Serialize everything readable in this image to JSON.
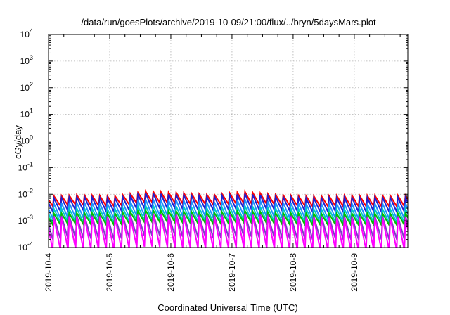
{
  "chart_data": {
    "type": "line",
    "title": "/data/run/goesPlots/archive/2019-10-09/21:00/flux/../bryn/5daysMars.plot",
    "xlabel": "Coordinated Universal Time (UTC)",
    "ylabel": "cGy/day",
    "x_scale": "time",
    "xlim": [
      "2019-10-04T00:00",
      "2019-10-09T21:00"
    ],
    "x_ticks": [
      "2019-10-4",
      "2019-10-5",
      "2019-10-6",
      "2019-10-7",
      "2019-10-8",
      "2019-10-9"
    ],
    "y_scale": "log",
    "ylim": [
      0.0001,
      10000
    ],
    "y_ticks": [
      {
        "base": "10",
        "exp": "-4"
      },
      {
        "base": "10",
        "exp": "-3"
      },
      {
        "base": "10",
        "exp": "-2"
      },
      {
        "base": "10",
        "exp": "-1"
      },
      {
        "base": "10",
        "exp": "0"
      },
      {
        "base": "10",
        "exp": "1"
      },
      {
        "base": "10",
        "exp": "2"
      },
      {
        "base": "10",
        "exp": "3"
      },
      {
        "base": "10",
        "exp": "4"
      }
    ],
    "grid": true,
    "sawtooth_period_hours": 3,
    "series": [
      {
        "color": "#ff0000",
        "peak": [
          0.0085,
          0.0095,
          0.0085,
          0.013,
          0.0115,
          0.0095,
          0.0125,
          0.0095,
          0.0085,
          0.009,
          0.009,
          0.009
        ],
        "trough": [
          0.0035,
          0.004,
          0.0035,
          0.005,
          0.0045,
          0.004,
          0.0045,
          0.004,
          0.0035,
          0.0035,
          0.0035,
          0.0035
        ]
      },
      {
        "color": "#1f1fd0",
        "peak": [
          0.007,
          0.008,
          0.007,
          0.011,
          0.0095,
          0.008,
          0.0105,
          0.008,
          0.007,
          0.0075,
          0.0075,
          0.0075
        ],
        "trough": [
          0.0022,
          0.0025,
          0.0022,
          0.003,
          0.0028,
          0.0025,
          0.0028,
          0.0025,
          0.0022,
          0.0022,
          0.0022,
          0.0022
        ]
      },
      {
        "color": "#1e90ff",
        "peak": [
          0.0045,
          0.005,
          0.0045,
          0.0065,
          0.006,
          0.005,
          0.0065,
          0.005,
          0.0045,
          0.0045,
          0.0045,
          0.0045
        ],
        "trough": [
          0.0012,
          0.0013,
          0.0012,
          0.0016,
          0.0015,
          0.0013,
          0.0015,
          0.0013,
          0.0012,
          0.0012,
          0.0012,
          0.0012
        ]
      },
      {
        "color": "#00c8c8",
        "peak": [
          0.0028,
          0.003,
          0.0028,
          0.0038,
          0.0035,
          0.003,
          0.0037,
          0.003,
          0.0028,
          0.0028,
          0.0028,
          0.0028
        ],
        "trough": [
          0.00085,
          0.0009,
          0.00085,
          0.0011,
          0.001,
          0.0009,
          0.001,
          0.0009,
          0.00085,
          0.00085,
          0.00085,
          0.00085
        ]
      },
      {
        "color": "#00c000",
        "peak": [
          0.0019,
          0.002,
          0.0019,
          0.0025,
          0.0023,
          0.002,
          0.0024,
          0.002,
          0.0019,
          0.0019,
          0.0019,
          0.0019
        ],
        "trough": [
          0.0007,
          0.00075,
          0.0007,
          0.0009,
          0.00085,
          0.00075,
          0.00085,
          0.00075,
          0.0007,
          0.0007,
          0.0007,
          0.0007
        ]
      },
      {
        "color": "#7b3fc4",
        "peak": [
          0.0015,
          0.0016,
          0.0015,
          0.0019,
          0.0018,
          0.0016,
          0.0019,
          0.0016,
          0.0015,
          0.0015,
          0.0015,
          0.0015
        ],
        "trough": [
          0.0002,
          0.00022,
          0.0002,
          0.00028,
          0.00026,
          0.00022,
          0.00026,
          0.00022,
          0.0002,
          0.0002,
          0.0002,
          0.0002
        ]
      },
      {
        "color": "#ff00ff",
        "peak": [
          0.0013,
          0.0014,
          0.0013,
          0.0017,
          0.0016,
          0.0014,
          0.0017,
          0.0014,
          0.0013,
          0.0013,
          0.0013,
          0.0013
        ],
        "trough": [
          8e-05,
          9e-05,
          8e-05,
          0.00011,
          0.0001,
          9e-05,
          0.0001,
          9e-05,
          8e-05,
          8e-05,
          8e-05,
          8e-05
        ]
      }
    ]
  }
}
